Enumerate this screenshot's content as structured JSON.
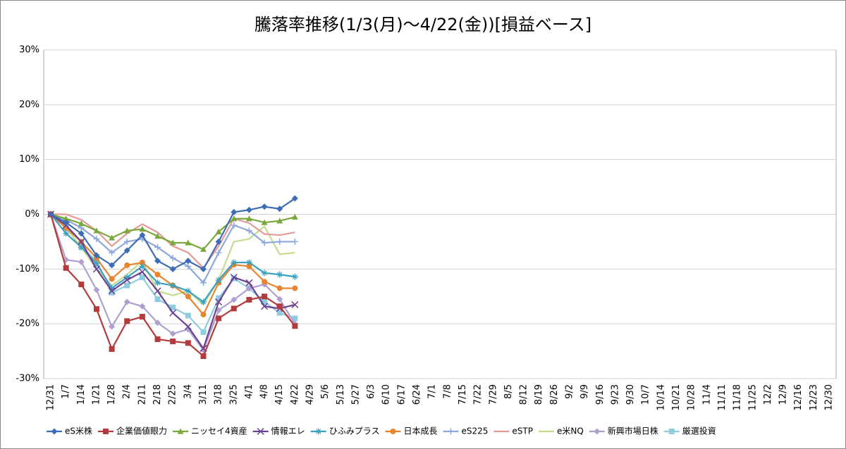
{
  "chart_data": {
    "type": "line",
    "title": "騰落率推移(1/3(月)～4/22(金))[損益ベース]",
    "categories": [
      "12/31",
      "1/7",
      "1/14",
      "1/21",
      "1/28",
      "2/4",
      "2/11",
      "2/18",
      "2/25",
      "3/4",
      "3/11",
      "3/18",
      "3/25",
      "4/1",
      "4/8",
      "4/15",
      "4/22",
      "4/29",
      "5/6",
      "5/13",
      "5/27",
      "6/3",
      "6/10",
      "6/17",
      "6/24",
      "7/1",
      "7/8",
      "7/15",
      "7/22",
      "7/29",
      "8/5",
      "8/12",
      "8/19",
      "8/26",
      "9/2",
      "9/9",
      "9/16",
      "9/23",
      "9/30",
      "10/7",
      "10/14",
      "10/21",
      "10/28",
      "11/4",
      "11/11",
      "11/18",
      "11/25",
      "12/2",
      "12/9",
      "12/16",
      "12/23",
      "12/30"
    ],
    "ylim": [
      -30,
      30
    ],
    "yticks": [
      {
        "value": -30,
        "label": "-30%"
      },
      {
        "value": -20,
        "label": "-20%"
      },
      {
        "value": -10,
        "label": "-10%"
      },
      {
        "value": 0,
        "label": "0%"
      },
      {
        "value": 10,
        "label": "10%"
      },
      {
        "value": 20,
        "label": "20%"
      },
      {
        "value": 30,
        "label": "30%"
      }
    ],
    "grid": true,
    "legend": "bottom",
    "series": [
      {
        "name": "eS米株",
        "color": "#3d6db5",
        "marker": "diamond",
        "values": [
          0,
          -1.5,
          -3.5,
          -7.5,
          -9.3,
          -6.6,
          -3.8,
          -8.5,
          -10,
          -8.5,
          -10,
          -5,
          0.4,
          0.8,
          1.4,
          1,
          2.9,
          null,
          null,
          null,
          null,
          null,
          null,
          null,
          null,
          null,
          null,
          null,
          null,
          null,
          null,
          null,
          null,
          null,
          null,
          null,
          null,
          null,
          null,
          null,
          null,
          null,
          null,
          null,
          null,
          null,
          null,
          null,
          null,
          null,
          null,
          null
        ]
      },
      {
        "name": "企業価値眼力",
        "color": "#b33b3b",
        "marker": "square",
        "values": [
          0,
          -9.8,
          -12.8,
          -17.3,
          -24.6,
          -19.5,
          -18.7,
          -22.8,
          -23.2,
          -23.5,
          -25.9,
          -19,
          -17.2,
          -15.6,
          -15,
          -16.8,
          -20.4,
          null,
          null,
          null,
          null,
          null,
          null,
          null,
          null,
          null,
          null,
          null,
          null,
          null,
          null,
          null,
          null,
          null,
          null,
          null,
          null,
          null,
          null,
          null,
          null,
          null,
          null,
          null,
          null,
          null,
          null,
          null,
          null,
          null,
          null,
          null
        ]
      },
      {
        "name": "ニッセイ4資産",
        "color": "#7aa83c",
        "marker": "triangle",
        "values": [
          0,
          -0.8,
          -1.7,
          -3,
          -4.3,
          -3,
          -2.7,
          -4,
          -5.2,
          -5.2,
          -6.4,
          -3.2,
          -0.8,
          -0.8,
          -1.5,
          -1.2,
          -0.5,
          null,
          null,
          null,
          null,
          null,
          null,
          null,
          null,
          null,
          null,
          null,
          null,
          null,
          null,
          null,
          null,
          null,
          null,
          null,
          null,
          null,
          null,
          null,
          null,
          null,
          null,
          null,
          null,
          null,
          null,
          null,
          null,
          null,
          null,
          null
        ]
      },
      {
        "name": "情報エレ",
        "color": "#6a4290",
        "marker": "x",
        "values": [
          0,
          -2,
          -5,
          -10,
          -14,
          -12,
          -10.5,
          -14,
          -18,
          -20.5,
          -24.5,
          -16,
          -11.5,
          -12.5,
          -16.8,
          -17.2,
          -16.5,
          null,
          null,
          null,
          null,
          null,
          null,
          null,
          null,
          null,
          null,
          null,
          null,
          null,
          null,
          null,
          null,
          null,
          null,
          null,
          null,
          null,
          null,
          null,
          null,
          null,
          null,
          null,
          null,
          null,
          null,
          null,
          null,
          null,
          null,
          null
        ]
      },
      {
        "name": "ひふみプラス",
        "color": "#3aa0c0",
        "marker": "star",
        "values": [
          0,
          -3.5,
          -6,
          -9,
          -13.5,
          -11.5,
          -9.5,
          -12.5,
          -13,
          -14,
          -16,
          -12,
          -8.8,
          -8.8,
          -10.7,
          -11,
          -11.4,
          null,
          null,
          null,
          null,
          null,
          null,
          null,
          null,
          null,
          null,
          null,
          null,
          null,
          null,
          null,
          null,
          null,
          null,
          null,
          null,
          null,
          null,
          null,
          null,
          null,
          null,
          null,
          null,
          null,
          null,
          null,
          null,
          null,
          null,
          null
        ]
      },
      {
        "name": "日本成長",
        "color": "#e8842e",
        "marker": "circle",
        "values": [
          0,
          -2.5,
          -5,
          -8,
          -11.8,
          -9.3,
          -8.8,
          -11,
          -13,
          -15,
          -18.3,
          -12.5,
          -9.2,
          -9.5,
          -12.3,
          -13.5,
          -13.5,
          null,
          null,
          null,
          null,
          null,
          null,
          null,
          null,
          null,
          null,
          null,
          null,
          null,
          null,
          null,
          null,
          null,
          null,
          null,
          null,
          null,
          null,
          null,
          null,
          null,
          null,
          null,
          null,
          null,
          null,
          null,
          null,
          null,
          null,
          null
        ]
      },
      {
        "name": "eS225",
        "color": "#8fa8dc",
        "marker": "plus",
        "values": [
          0,
          -1,
          -2.5,
          -4.5,
          -7,
          -5,
          -4.5,
          -6,
          -8,
          -9.5,
          -12.5,
          -7,
          -2,
          -3,
          -5.2,
          -5,
          -5,
          null,
          null,
          null,
          null,
          null,
          null,
          null,
          null,
          null,
          null,
          null,
          null,
          null,
          null,
          null,
          null,
          null,
          null,
          null,
          null,
          null,
          null,
          null,
          null,
          null,
          null,
          null,
          null,
          null,
          null,
          null,
          null,
          null,
          null,
          null
        ]
      },
      {
        "name": "eSTP",
        "color": "#e49a98",
        "marker": "none",
        "values": [
          0,
          0,
          -1,
          -3,
          -5.8,
          -3.5,
          -1.8,
          -3.3,
          -5.8,
          -7,
          -9.8,
          -5.8,
          -0.8,
          -1.6,
          -3.6,
          -3.8,
          -3.3,
          null,
          null,
          null,
          null,
          null,
          null,
          null,
          null,
          null,
          null,
          null,
          null,
          null,
          null,
          null,
          null,
          null,
          null,
          null,
          null,
          null,
          null,
          null,
          null,
          null,
          null,
          null,
          null,
          null,
          null,
          null,
          null,
          null,
          null,
          null
        ]
      },
      {
        "name": "e米NQ",
        "color": "#c4dc90",
        "marker": "none",
        "values": [
          0,
          -2.5,
          -6,
          -10,
          -13,
          -11,
          -8.5,
          -14,
          -14.8,
          -14,
          -16.5,
          -12,
          -5,
          -4.5,
          -2.2,
          -7.3,
          -7,
          null,
          null,
          null,
          null,
          null,
          null,
          null,
          null,
          null,
          null,
          null,
          null,
          null,
          null,
          null,
          null,
          null,
          null,
          null,
          null,
          null,
          null,
          null,
          null,
          null,
          null,
          null,
          null,
          null,
          null,
          null,
          null,
          null,
          null,
          null
        ]
      },
      {
        "name": "新興市場日株",
        "color": "#b0a0d0",
        "marker": "diamond",
        "values": [
          0,
          -8.3,
          -8.7,
          -13.8,
          -20.5,
          -16,
          -16.8,
          -19.8,
          -21.8,
          -21,
          -24.8,
          -17.5,
          -15.6,
          -13.5,
          -12.8,
          -15.5,
          -20,
          null,
          null,
          null,
          null,
          null,
          null,
          null,
          null,
          null,
          null,
          null,
          null,
          null,
          null,
          null,
          null,
          null,
          null,
          null,
          null,
          null,
          null,
          null,
          null,
          null,
          null,
          null,
          null,
          null,
          null,
          null,
          null,
          null,
          null,
          null
        ]
      },
      {
        "name": "厳選投資",
        "color": "#90cce0",
        "marker": "square",
        "values": [
          0,
          -2.5,
          -6,
          -8.5,
          -14.3,
          -13,
          -11.5,
          -15.5,
          -17,
          -18.5,
          -21.5,
          -15.3,
          -11.7,
          -13.5,
          -16,
          -18,
          -19,
          null,
          null,
          null,
          null,
          null,
          null,
          null,
          null,
          null,
          null,
          null,
          null,
          null,
          null,
          null,
          null,
          null,
          null,
          null,
          null,
          null,
          null,
          null,
          null,
          null,
          null,
          null,
          null,
          null,
          null,
          null,
          null,
          null,
          null,
          null
        ]
      }
    ]
  }
}
